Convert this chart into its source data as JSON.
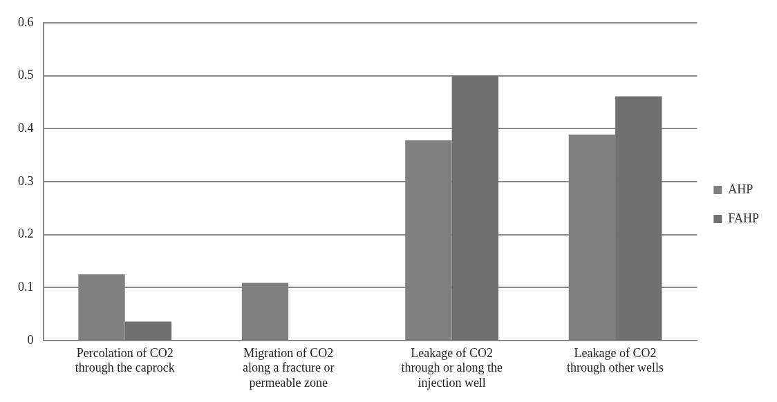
{
  "chart_data": {
    "type": "bar",
    "categories": [
      "Percolation of CO2 through the caprock",
      "Migration of CO2 along a fracture or permeable zone",
      "Leakage of CO2 through or along the injection well",
      "Leakage of CO2 through other wells"
    ],
    "series": [
      {
        "name": "AHP",
        "color": "#808080",
        "values": [
          0.125,
          0.109,
          0.378,
          0.389
        ]
      },
      {
        "name": "FAHP",
        "color": "#707070",
        "values": [
          0.036,
          0,
          0.5,
          0.461
        ]
      }
    ],
    "ylim": [
      0,
      0.6
    ],
    "yticks": [
      0,
      0.1,
      0.2,
      0.3,
      0.4,
      0.5,
      0.6
    ],
    "grid": "y",
    "legend": "right"
  }
}
